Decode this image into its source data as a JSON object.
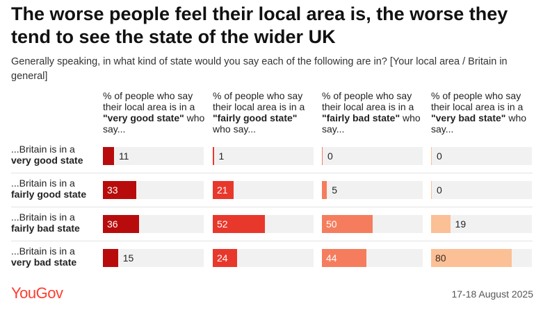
{
  "title": "The worse people feel their local area is, the worse they tend to see the state of the wider UK",
  "subtitle": "Generally speaking, in what kind of state would you say each of the following are in? [Your local area / Britain in general]",
  "chart_data": {
    "type": "bar",
    "orientation": "horizontal",
    "layout": "small-multiples",
    "xlim": [
      0,
      100
    ],
    "categories": [
      {
        "prefix": "...Britain is in a",
        "bold": "very good state"
      },
      {
        "prefix": "...Britain is in a",
        "bold": "fairly good state"
      },
      {
        "prefix": "...Britain is in a",
        "bold": "fairly bad state"
      },
      {
        "prefix": "...Britain is in a",
        "bold": "very bad state"
      }
    ],
    "series": [
      {
        "header_pre": "% of people who say their local area is in a ",
        "header_bold": "\"very good state\"",
        "header_post": " who say...",
        "color": "#b80c0c",
        "values": [
          11,
          33,
          36,
          15
        ]
      },
      {
        "header_pre": "% of people who say their local area is in a ",
        "header_bold": "\"fairly good state\"",
        "header_post": " who say...",
        "color": "#e8382c",
        "values": [
          1,
          21,
          52,
          24
        ]
      },
      {
        "header_pre": "% of people who say their local area is in a ",
        "header_bold": "\"fairly bad state\"",
        "header_post": " who say...",
        "color": "#f57d5e",
        "values": [
          0,
          5,
          50,
          44
        ]
      },
      {
        "header_pre": "% of people who say their local area is in a ",
        "header_bold": "\"very bad state\"",
        "header_post": " who say...",
        "color": "#fbc096",
        "values": [
          0,
          0,
          19,
          80
        ]
      }
    ]
  },
  "footer": {
    "brand": "YouGov",
    "date": "17-18 August 2025"
  }
}
